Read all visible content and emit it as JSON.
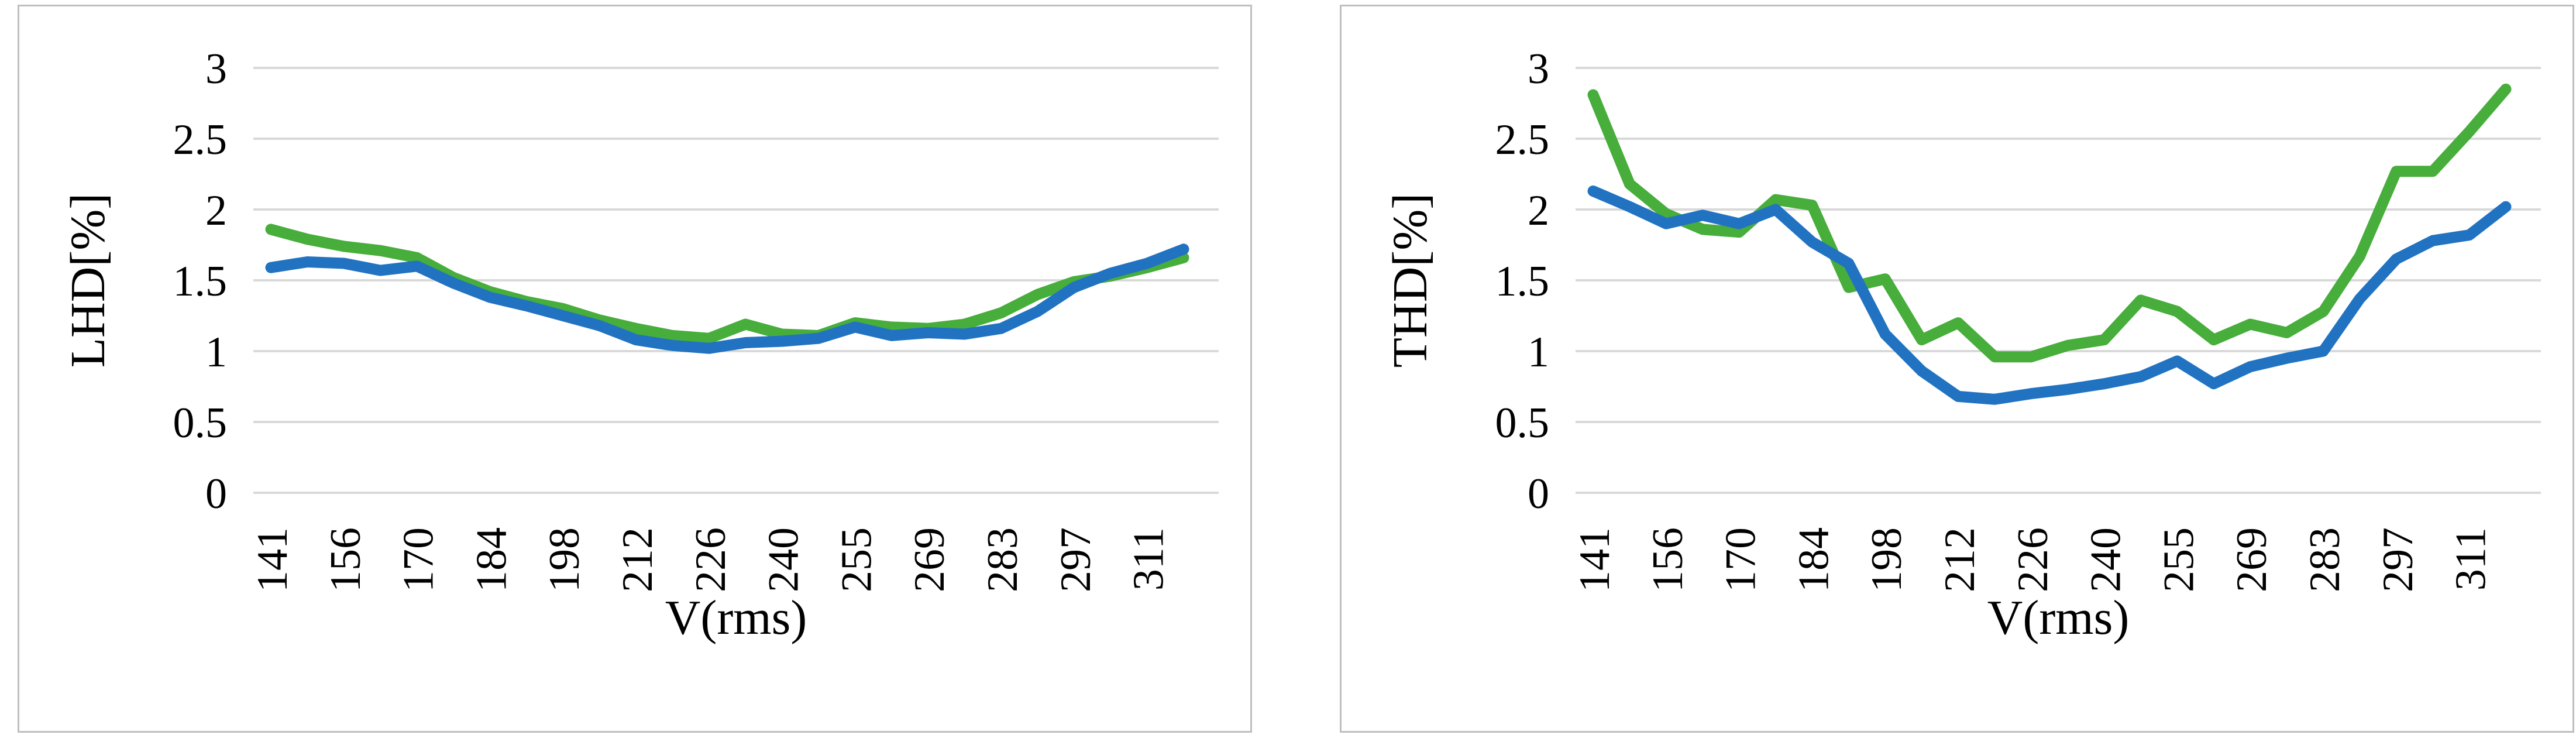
{
  "page": {
    "background_color": "#FFFFFF",
    "panel_border_color": "#BFBFBF",
    "gridline_color": "#D9D9D9"
  },
  "chart_data": [
    {
      "type": "line",
      "y_axis_label": "LHD[%]",
      "x_axis_label": "V(rms)",
      "ylim": [
        0,
        3
      ],
      "y_tick_values": [
        0,
        0.5,
        1,
        1.5,
        2,
        2.5,
        3
      ],
      "y_tick_labels": [
        "0",
        "0.5",
        "1",
        "1.5",
        "2",
        "2.5",
        "3"
      ],
      "x_values": [
        141,
        148,
        156,
        163,
        170,
        177,
        184,
        191,
        198,
        205,
        212,
        219,
        226,
        233,
        240,
        248,
        255,
        262,
        269,
        276,
        283,
        290,
        297,
        304,
        311,
        318
      ],
      "x_tick_labels": [
        "141",
        "156",
        "170",
        "184",
        "198",
        "212",
        "226",
        "240",
        "255",
        "269",
        "283",
        "297",
        "311"
      ],
      "x_labels_every": 2,
      "grid": "horizontal",
      "legend": "none",
      "series": [
        {
          "name": "green",
          "color": "#47AD3B",
          "values": [
            1.86,
            1.79,
            1.74,
            1.71,
            1.66,
            1.52,
            1.42,
            1.35,
            1.3,
            1.22,
            1.16,
            1.11,
            1.09,
            1.19,
            1.12,
            1.11,
            1.2,
            1.17,
            1.16,
            1.19,
            1.27,
            1.4,
            1.49,
            1.53,
            1.59,
            1.66
          ]
        },
        {
          "name": "blue",
          "color": "#2173C2",
          "values": [
            1.59,
            1.63,
            1.62,
            1.57,
            1.6,
            1.48,
            1.38,
            1.32,
            1.25,
            1.18,
            1.08,
            1.04,
            1.02,
            1.06,
            1.07,
            1.09,
            1.17,
            1.11,
            1.13,
            1.12,
            1.16,
            1.28,
            1.45,
            1.55,
            1.62,
            1.72
          ]
        }
      ]
    },
    {
      "type": "line",
      "y_axis_label": "THD[%]",
      "x_axis_label": "V(rms)",
      "ylim": [
        0,
        3
      ],
      "y_tick_values": [
        0,
        0.5,
        1,
        1.5,
        2,
        2.5,
        3
      ],
      "y_tick_labels": [
        "0",
        "0.5",
        "1",
        "1.5",
        "2",
        "2.5",
        "3"
      ],
      "x_values": [
        141,
        148,
        156,
        163,
        170,
        177,
        184,
        191,
        198,
        205,
        212,
        219,
        226,
        233,
        240,
        248,
        255,
        262,
        269,
        276,
        283,
        290,
        297,
        304,
        311,
        318
      ],
      "x_tick_labels": [
        "141",
        "156",
        "170",
        "184",
        "198",
        "212",
        "226",
        "240",
        "255",
        "269",
        "283",
        "297",
        "311"
      ],
      "x_labels_every": 2,
      "grid": "horizontal",
      "legend": "none",
      "series": [
        {
          "name": "green",
          "color": "#47AD3B",
          "values": [
            2.81,
            2.18,
            1.97,
            1.86,
            1.84,
            2.07,
            2.03,
            1.45,
            1.51,
            1.08,
            1.2,
            0.96,
            0.96,
            1.04,
            1.08,
            1.36,
            1.28,
            1.08,
            1.19,
            1.13,
            1.28,
            1.67,
            2.27,
            2.27,
            2.55,
            2.85
          ]
        },
        {
          "name": "blue",
          "color": "#2173C2",
          "values": [
            2.13,
            2.02,
            1.9,
            1.96,
            1.9,
            2.0,
            1.77,
            1.62,
            1.12,
            0.86,
            0.68,
            0.66,
            0.7,
            0.73,
            0.77,
            0.82,
            0.93,
            0.77,
            0.89,
            0.95,
            1.0,
            1.37,
            1.65,
            1.78,
            1.82,
            2.02
          ]
        }
      ]
    }
  ]
}
